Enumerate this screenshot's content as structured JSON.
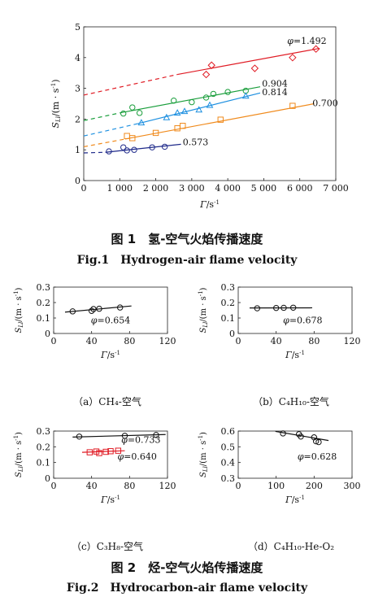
{
  "colors": {
    "red": "#e01b24",
    "green": "#1a9e3c",
    "blue": "#1c8fe0",
    "orange": "#f08a1c",
    "navy": "#1f2a8a",
    "black": "#111111"
  },
  "fig1": {
    "caption_cn": "图 1　氢-空气火焰传播速度",
    "caption_en": "Fig.1　Hydrogen-air flame velocity",
    "ylabel": "S_Ll/(m·s⁻¹)",
    "xlabel": "Γ/s⁻¹"
  },
  "fig2": {
    "caption_cn": "图 2　烃-空气火焰传播速度",
    "caption_en": "Fig.2　Hydrocarbon-air flame velocity",
    "subcaptions": [
      "（a）CH₄-空气",
      "（b）C₄H₁₀-空气",
      "（c）C₃H₈-空气",
      "（d）C₄H₁₀-He-O₂"
    ]
  },
  "chart_data": [
    {
      "type": "scatter",
      "id": "fig1",
      "xlabel": "Γ/s⁻¹",
      "ylabel": "S_Ll/(m·s⁻¹)",
      "xlim": [
        0,
        7000
      ],
      "ylim": [
        0,
        5
      ],
      "xticks": [
        0,
        1000,
        2000,
        3000,
        4000,
        5000,
        6000,
        7000
      ],
      "xticklabels": [
        "0",
        "1 000",
        "2 000",
        "3 000",
        "4 000",
        "5 000",
        "6 000",
        "7 000"
      ],
      "yticks": [
        0,
        1,
        2,
        3,
        4,
        5
      ],
      "grid": false,
      "series": [
        {
          "name": "φ=1.492",
          "color": "red",
          "marker": "diamond",
          "x": [
            3400,
            3550,
            4750,
            5800,
            6450
          ],
          "y": [
            3.45,
            3.75,
            3.65,
            4.0,
            4.28
          ],
          "fit": [
            [
              2600,
              3.45
            ],
            [
              6550,
              4.3
            ]
          ],
          "dash": [
            [
              0,
              2.78
            ],
            [
              2600,
              3.45
            ]
          ],
          "label_pos": [
            5650,
            4.45
          ]
        },
        {
          "name": "0.904",
          "color": "green",
          "marker": "circle",
          "x": [
            1100,
            1350,
            1550,
            2500,
            3000,
            3400,
            3600,
            4000,
            4500
          ],
          "y": [
            2.18,
            2.38,
            2.2,
            2.6,
            2.55,
            2.7,
            2.82,
            2.88,
            2.92
          ],
          "fit": [
            [
              1000,
              2.2
            ],
            [
              4900,
              3.05
            ]
          ],
          "dash": [
            [
              0,
              1.95
            ],
            [
              1000,
              2.2
            ]
          ],
          "label_pos": [
            4950,
            3.05
          ]
        },
        {
          "name": "0.814",
          "color": "blue",
          "marker": "triangle",
          "x": [
            1600,
            2300,
            2600,
            2800,
            3200,
            3500,
            4500
          ],
          "y": [
            1.88,
            2.05,
            2.2,
            2.25,
            2.3,
            2.45,
            2.75
          ],
          "fit": [
            [
              1500,
              1.85
            ],
            [
              4900,
              2.85
            ]
          ],
          "dash": [
            [
              0,
              1.45
            ],
            [
              1500,
              1.85
            ]
          ],
          "label_pos": [
            4950,
            2.78
          ]
        },
        {
          "name": "0.700",
          "color": "orange",
          "marker": "square",
          "x": [
            1200,
            1350,
            2000,
            2600,
            2750,
            3800,
            5800
          ],
          "y": [
            1.45,
            1.38,
            1.55,
            1.7,
            1.78,
            1.98,
            2.43
          ],
          "fit": [
            [
              1150,
              1.35
            ],
            [
              6400,
              2.5
            ]
          ],
          "dash": [
            [
              0,
              1.1
            ],
            [
              1150,
              1.35
            ]
          ],
          "label_pos": [
            6350,
            2.42
          ]
        },
        {
          "name": "0.573",
          "color": "navy",
          "marker": "circle",
          "x": [
            700,
            1100,
            1200,
            1400,
            1900,
            2250
          ],
          "y": [
            0.95,
            1.08,
            0.98,
            1.0,
            1.08,
            1.1
          ],
          "fit": [
            [
              600,
              0.92
            ],
            [
              2700,
              1.18
            ]
          ],
          "dash": [
            [
              0,
              0.9
            ],
            [
              600,
              0.92
            ]
          ],
          "label_pos": [
            2750,
            1.15
          ]
        }
      ]
    },
    {
      "type": "scatter",
      "id": "a",
      "xlim": [
        0,
        120
      ],
      "ylim": [
        0,
        0.3
      ],
      "xticks": [
        0,
        40,
        80,
        120
      ],
      "yticks": [
        0,
        0.1,
        0.2,
        0.3
      ],
      "xlabel": "Γ/s⁻¹",
      "ylabel": "S_Ll/(m·s⁻¹)",
      "series": [
        {
          "name": "φ=0.654",
          "color": "black",
          "marker": "circle",
          "x": [
            20,
            40,
            42,
            48,
            70
          ],
          "y": [
            0.143,
            0.146,
            0.158,
            0.16,
            0.168
          ],
          "fit": [
            [
              12,
              0.138
            ],
            [
              82,
              0.178
            ]
          ],
          "label_pos": [
            60,
            0.065
          ]
        }
      ]
    },
    {
      "type": "scatter",
      "id": "b",
      "xlim": [
        0,
        120
      ],
      "ylim": [
        0,
        0.3
      ],
      "xticks": [
        0,
        40,
        80,
        120
      ],
      "yticks": [
        0,
        0.1,
        0.2,
        0.3
      ],
      "xlabel": "Γ/s⁻¹",
      "ylabel": "S_Ll/(m·s⁻¹)",
      "series": [
        {
          "name": "φ=0.678",
          "color": "black",
          "marker": "circle",
          "x": [
            20,
            40,
            48,
            58
          ],
          "y": [
            0.163,
            0.165,
            0.166,
            0.167
          ],
          "fit": [
            [
              12,
              0.165
            ],
            [
              78,
              0.166
            ]
          ],
          "label_pos": [
            68,
            0.065
          ]
        }
      ]
    },
    {
      "type": "scatter",
      "id": "c",
      "xlim": [
        0,
        120
      ],
      "ylim": [
        0,
        0.3
      ],
      "xticks": [
        0,
        40,
        80,
        120
      ],
      "yticks": [
        0,
        0.1,
        0.2,
        0.3
      ],
      "xlabel": "Γ/s⁻¹",
      "ylabel": "S_Ll/(m·s⁻¹)",
      "series": [
        {
          "name": "φ=0.733",
          "color": "black",
          "marker": "circle",
          "x": [
            27,
            75,
            108
          ],
          "y": [
            0.265,
            0.27,
            0.275
          ],
          "fit": [
            [
              20,
              0.262
            ],
            [
              118,
              0.278
            ]
          ],
          "label_pos": [
            92,
            0.225
          ]
        },
        {
          "name": "φ=0.640",
          "color": "red",
          "marker": "square",
          "x": [
            38,
            45,
            48,
            55,
            60,
            68
          ],
          "y": [
            0.165,
            0.17,
            0.16,
            0.168,
            0.172,
            0.175
          ],
          "fit": [
            [
              30,
              0.165
            ],
            [
              75,
              0.175
            ]
          ],
          "label_pos": [
            88,
            0.12
          ]
        }
      ]
    },
    {
      "type": "scatter",
      "id": "d",
      "xlim": [
        0,
        300
      ],
      "ylim": [
        0.3,
        0.6
      ],
      "xticks": [
        0,
        100,
        200,
        300
      ],
      "yticks": [
        0.3,
        0.4,
        0.5,
        0.6
      ],
      "xlabel": "Γ/s⁻¹",
      "ylabel": "S_Ll/(m·s⁻¹)",
      "series": [
        {
          "name": "φ=0.628",
          "color": "black",
          "marker": "circle",
          "x": [
            118,
            160,
            165,
            200,
            205,
            212
          ],
          "y": [
            0.585,
            0.58,
            0.565,
            0.56,
            0.535,
            0.53
          ],
          "fit": [
            [
              98,
              0.598
            ],
            [
              238,
              0.54
            ]
          ],
          "label_pos": [
            208,
            0.42
          ]
        }
      ]
    }
  ]
}
